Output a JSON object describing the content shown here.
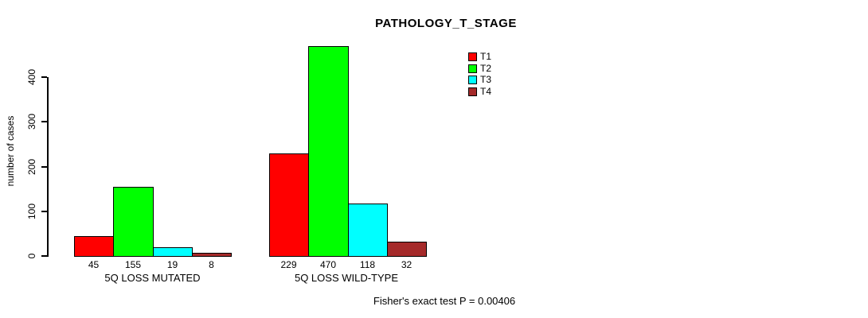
{
  "chart_data": {
    "type": "bar",
    "title": "PATHOLOGY_T_STAGE",
    "xlabel": "",
    "ylabel": "number of cases",
    "ylim": [
      0,
      400
    ],
    "yticks": [
      0,
      100,
      200,
      300,
      400
    ],
    "grid": false,
    "legend_position": "top-right",
    "categories": [
      "5Q LOSS MUTATED",
      "5Q LOSS WILD-TYPE"
    ],
    "series": [
      {
        "name": "T1",
        "color": "#FF0000",
        "values": [
          45,
          229
        ]
      },
      {
        "name": "T2",
        "color": "#00FF00",
        "values": [
          155,
          470
        ]
      },
      {
        "name": "T3",
        "color": "#00FFFF",
        "values": [
          19,
          118
        ]
      },
      {
        "name": "T4",
        "color": "#A52A2A",
        "values": [
          8,
          32
        ]
      }
    ],
    "bar_value_labels": [
      [
        45,
        155,
        19,
        8
      ],
      [
        229,
        470,
        118,
        32
      ]
    ],
    "annotation": "Fisher's exact test P = 0.00406",
    "axis_color": "#000000",
    "bar_border_color": "#000000"
  }
}
